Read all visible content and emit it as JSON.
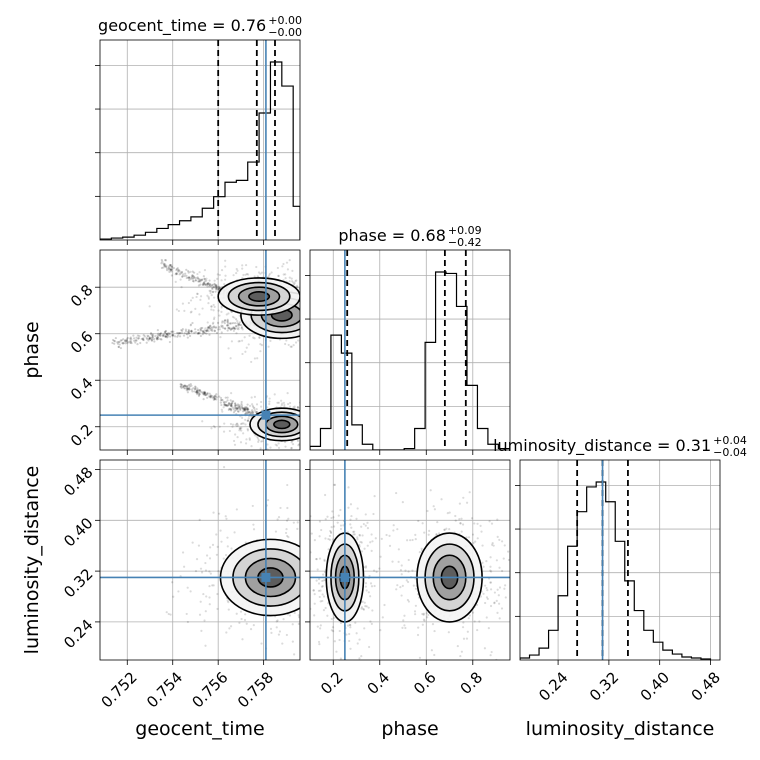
{
  "chart_data": {
    "type": "corner",
    "parameters": [
      "geocent_time",
      "phase",
      "luminosity_distance"
    ],
    "axis_labels": {
      "geocent_time": "geocent_time",
      "phase": "phase",
      "luminosity_distance": "luminosity_distance"
    },
    "ranges": {
      "geocent_time": [
        0.7508,
        0.7596
      ],
      "phase": [
        0.1,
        0.96
      ],
      "luminosity_distance": [
        0.18,
        0.495
      ]
    },
    "ticks": {
      "geocent_time": [
        "0.752",
        "0.754",
        "0.756",
        "0.758"
      ],
      "phase": [
        "0.2",
        "0.4",
        "0.6",
        "0.8"
      ],
      "luminosity_distance": [
        "0.24",
        "0.32",
        "0.40",
        "0.48"
      ]
    },
    "truths": {
      "geocent_time": 0.7581,
      "phase": 0.25,
      "luminosity_distance": 0.31
    },
    "truth_color": "#4682b4",
    "titles": {
      "geocent_time": {
        "name": "geocent_time",
        "median": "0.76",
        "plus": "+0.00",
        "minus": "−0.00"
      },
      "phase": {
        "name": "phase",
        "median": "0.68",
        "plus": "+0.09",
        "minus": "−0.42"
      },
      "luminosity_distance": {
        "name": "luminosity_distance",
        "median": "0.31",
        "plus": "+0.04",
        "minus": "−0.04"
      }
    },
    "quantiles": {
      "geocent_time": [
        0.756,
        0.7577,
        0.7585
      ],
      "phase": [
        0.26,
        0.68,
        0.77
      ],
      "luminosity_distance": [
        0.27,
        0.31,
        0.35
      ]
    },
    "histograms": {
      "geocent_time": {
        "edges": [
          0.7508,
          0.7513,
          0.7518,
          0.7523,
          0.7528,
          0.7533,
          0.7538,
          0.7543,
          0.7548,
          0.7553,
          0.7558,
          0.7563,
          0.7568,
          0.7573,
          0.7578,
          0.7583,
          0.7588,
          0.7593,
          0.7596
        ],
        "counts": [
          1,
          2,
          3,
          5,
          8,
          12,
          16,
          20,
          24,
          33,
          45,
          60,
          62,
          81,
          132,
          185,
          160,
          35
        ]
      },
      "phase": {
        "edges": [
          0.1,
          0.145,
          0.19,
          0.235,
          0.28,
          0.325,
          0.37,
          0.415,
          0.46,
          0.505,
          0.55,
          0.595,
          0.64,
          0.685,
          0.73,
          0.775,
          0.82,
          0.865,
          0.91,
          0.96
        ],
        "counts": [
          5,
          30,
          160,
          135,
          35,
          8,
          0,
          0,
          0,
          2,
          30,
          150,
          248,
          246,
          200,
          90,
          30,
          8,
          2
        ]
      },
      "luminosity_distance": {
        "edges": [
          0.18,
          0.195,
          0.21,
          0.225,
          0.24,
          0.255,
          0.27,
          0.285,
          0.3,
          0.315,
          0.33,
          0.345,
          0.36,
          0.375,
          0.39,
          0.405,
          0.42,
          0.435,
          0.45,
          0.465,
          0.48
        ],
        "counts": [
          2,
          5,
          12,
          30,
          65,
          115,
          150,
          175,
          180,
          160,
          120,
          80,
          50,
          30,
          18,
          10,
          6,
          3,
          2,
          1
        ]
      }
    },
    "contour_levels_sigma": [
      0.5,
      1.0,
      1.5,
      2.0
    ],
    "blobs": {
      "phase|geocent_time": [
        {
          "x": 0.7588,
          "y": 0.68,
          "sx": 0.0009,
          "sy": 0.05
        },
        {
          "x": 0.7578,
          "y": 0.76,
          "sx": 0.0009,
          "sy": 0.04
        },
        {
          "x": 0.7588,
          "y": 0.21,
          "sx": 0.0007,
          "sy": 0.035
        }
      ],
      "luminosity_distance|geocent_time": [
        {
          "x": 0.7583,
          "y": 0.31,
          "sx": 0.0011,
          "sy": 0.03
        }
      ],
      "luminosity_distance|phase": [
        {
          "x": 0.7,
          "y": 0.31,
          "sx": 0.07,
          "sy": 0.035
        },
        {
          "x": 0.25,
          "y": 0.31,
          "sx": 0.04,
          "sy": 0.035
        }
      ]
    },
    "scatter_tracks": {
      "phase|geocent_time": [
        {
          "x0": 0.7535,
          "y0": 0.9,
          "x1": 0.7596,
          "y1": 0.64
        },
        {
          "x0": 0.7513,
          "y0": 0.56,
          "x1": 0.7596,
          "y1": 0.67
        },
        {
          "x0": 0.7543,
          "y0": 0.38,
          "x1": 0.7596,
          "y1": 0.18
        }
      ]
    }
  }
}
